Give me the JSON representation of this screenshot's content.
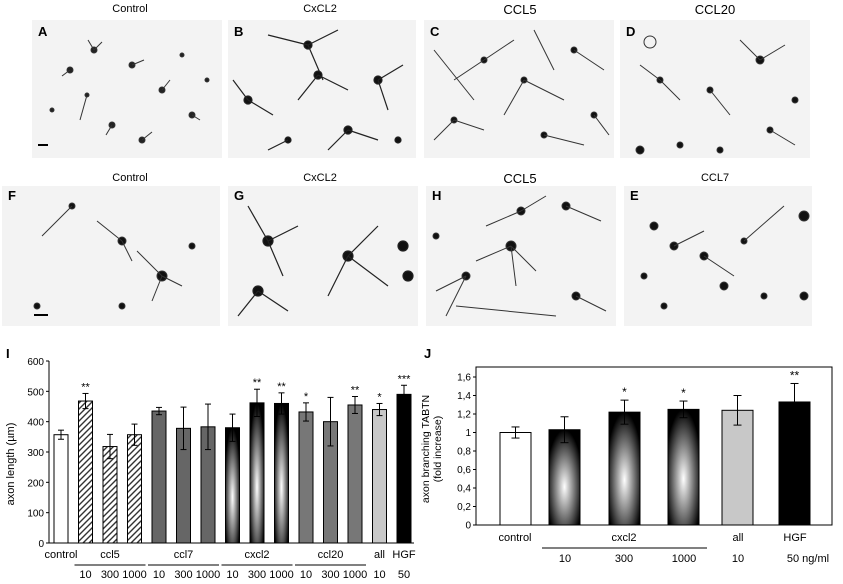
{
  "panels": [
    {
      "letter": "A",
      "title": "Control"
    },
    {
      "letter": "B",
      "title": "CxCL2"
    },
    {
      "letter": "C",
      "title": "CCL5"
    },
    {
      "letter": "D",
      "title": "CCL20"
    },
    {
      "letter": "F",
      "title": "Control"
    },
    {
      "letter": "G",
      "title": "CxCL2"
    },
    {
      "letter": "H",
      "title": "CCL5"
    },
    {
      "letter": "E",
      "title": "CCL7"
    }
  ],
  "chart_i": {
    "letter": "I",
    "ylabel": "axon length (µm)",
    "yticks": [
      "0",
      "100",
      "200",
      "300",
      "400",
      "500",
      "600"
    ],
    "group_labels": [
      "control",
      "ccl5",
      "ccl7",
      "cxcl2",
      "ccl20",
      "all",
      "HGF"
    ],
    "dose_labels": [
      "10",
      "300",
      "1000",
      "10",
      "300",
      "1000",
      "10",
      "300",
      "1000",
      "10",
      "300",
      "1000",
      "10",
      "50"
    ],
    "unit": "ng/ml"
  },
  "chart_j": {
    "letter": "J",
    "ylabel_line1": "axon branching TABTN",
    "ylabel_line2": "(fold increase)",
    "yticks": [
      "0",
      "0,2",
      "0,4",
      "0,6",
      "0,8",
      "1",
      "1,2",
      "1,4",
      "1,6"
    ],
    "group_labels": [
      "control",
      "cxcl2",
      "all",
      "HGF"
    ],
    "dose_labels": [
      "10",
      "300",
      "1000",
      "10",
      "50 ng/ml"
    ]
  },
  "chart_data": [
    {
      "type": "bar",
      "ylabel": "axon length (µm)",
      "ylim": [
        0,
        600
      ],
      "categories": [
        "control",
        "ccl5 10",
        "ccl5 300",
        "ccl5 1000",
        "ccl7 10",
        "ccl7 300",
        "ccl7 1000",
        "cxcl2 10",
        "cxcl2 300",
        "cxcl2 1000",
        "ccl20 10",
        "ccl20 300",
        "ccl20 1000",
        "all 10",
        "HGF 50"
      ],
      "values": [
        357,
        468,
        318,
        357,
        435,
        378,
        383,
        380,
        462,
        460,
        432,
        400,
        455,
        440,
        490
      ],
      "errors": [
        15,
        25,
        40,
        35,
        12,
        70,
        75,
        45,
        45,
        35,
        30,
        80,
        28,
        20,
        30
      ],
      "significance": [
        "",
        "**",
        "",
        "",
        "",
        "",
        "",
        "",
        "**",
        "**",
        "*",
        "",
        "**",
        "*",
        "***"
      ]
    },
    {
      "type": "bar",
      "ylabel": "axon branching TABTN (fold increase)",
      "ylim": [
        0,
        1.6
      ],
      "categories": [
        "control",
        "cxcl2 10",
        "cxcl2 300",
        "cxcl2 1000",
        "all 10",
        "HGF 50"
      ],
      "values": [
        1.0,
        1.03,
        1.22,
        1.25,
        1.24,
        1.33
      ],
      "errors": [
        0.06,
        0.14,
        0.13,
        0.09,
        0.16,
        0.2
      ],
      "significance": [
        "",
        "",
        "*",
        "*",
        "",
        "**"
      ]
    }
  ]
}
